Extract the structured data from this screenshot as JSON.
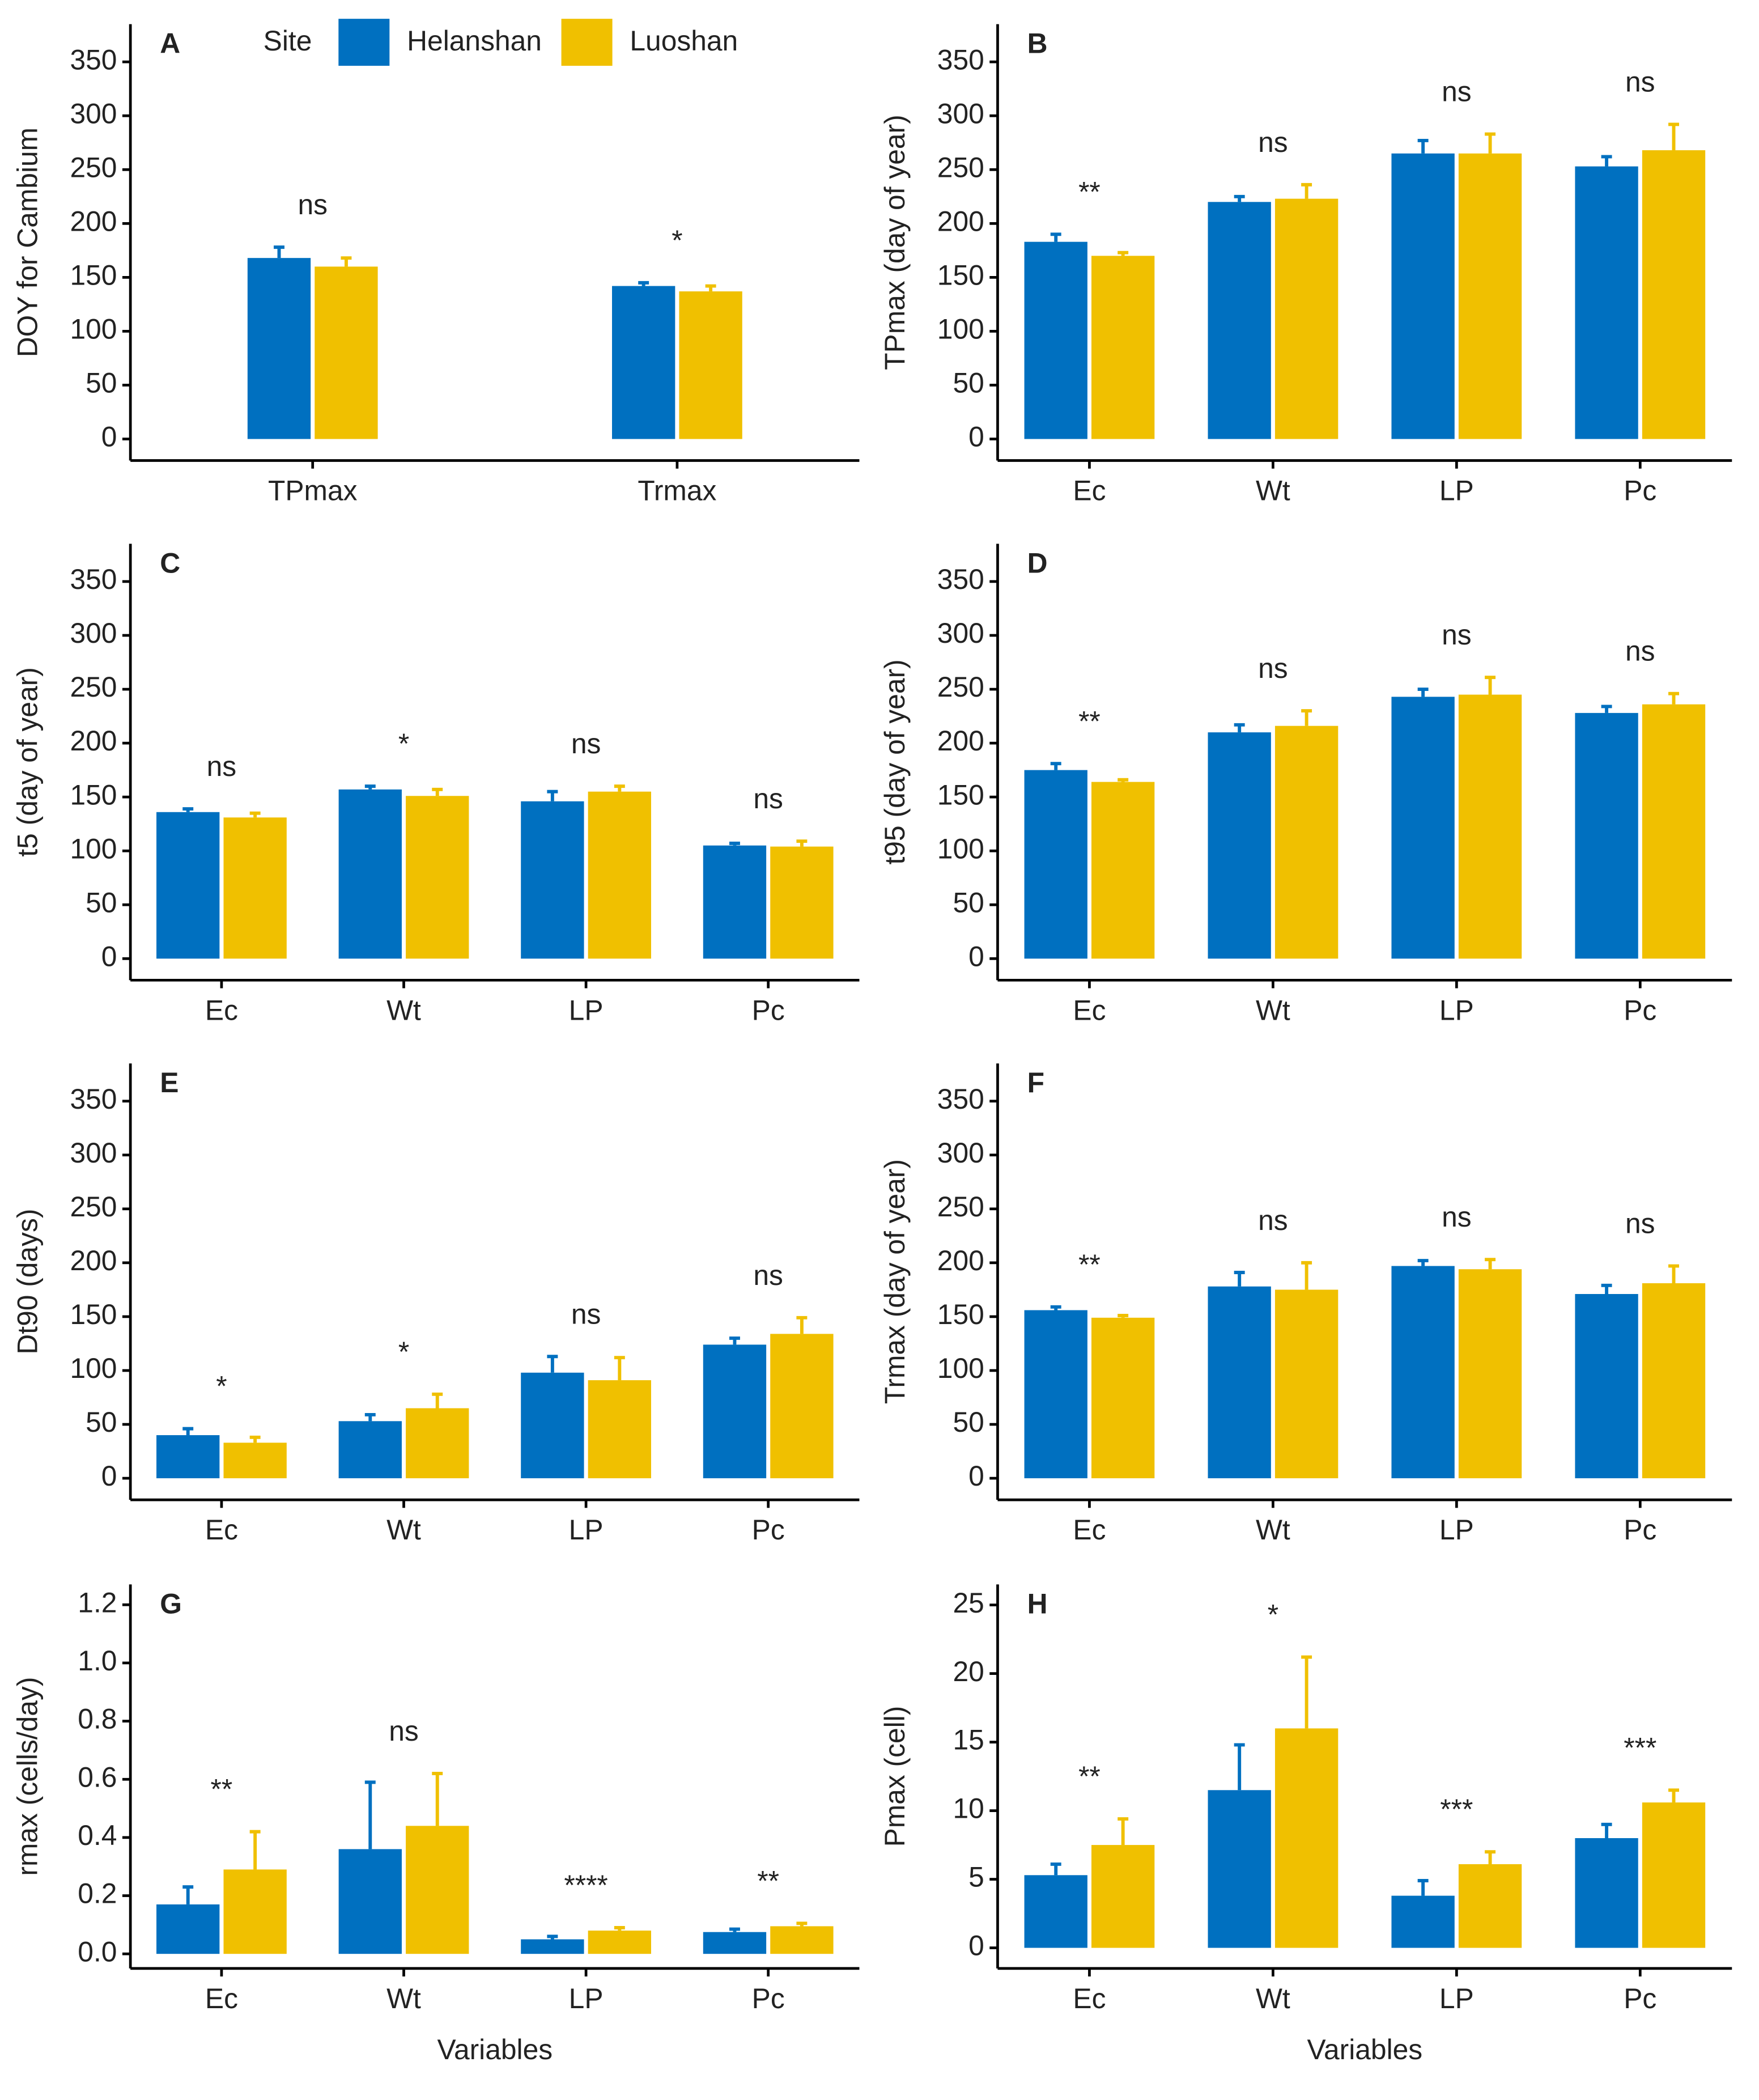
{
  "legend": {
    "title": "Site",
    "series": [
      {
        "name": "Helanshan",
        "color": "#0070c0"
      },
      {
        "name": "Luoshan",
        "color": "#f0c000"
      }
    ]
  },
  "chart_data": [
    {
      "type": "bar",
      "panel": "A",
      "ylabel": "DOY for Cambium",
      "categories": [
        "TPmax",
        "Trmax"
      ],
      "series": [
        {
          "values": [
            168,
            142
          ],
          "errors": [
            10,
            3
          ]
        },
        {
          "values": [
            160,
            137
          ],
          "errors": [
            8,
            5
          ]
        }
      ],
      "annotations": [
        "ns",
        "*"
      ],
      "ylim": [
        -20,
        385
      ],
      "yticks": [
        0,
        50,
        100,
        150,
        200,
        250,
        300,
        350
      ]
    },
    {
      "type": "bar",
      "panel": "B",
      "ylabel": "TPmax (day of year)",
      "categories": [
        "Ec",
        "Wt",
        "LP",
        "Pc"
      ],
      "series": [
        {
          "values": [
            183,
            220,
            265,
            253
          ],
          "errors": [
            7,
            5,
            12,
            9
          ]
        },
        {
          "values": [
            170,
            223,
            265,
            268
          ],
          "errors": [
            3,
            13,
            18,
            24
          ]
        }
      ],
      "annotations": [
        "**",
        "ns",
        "ns",
        "ns"
      ],
      "ylim": [
        -20,
        385
      ],
      "yticks": [
        0,
        50,
        100,
        150,
        200,
        250,
        300,
        350
      ]
    },
    {
      "type": "bar",
      "panel": "C",
      "ylabel": "t5 (day of year)",
      "categories": [
        "Ec",
        "Wt",
        "LP",
        "Pc"
      ],
      "series": [
        {
          "values": [
            136,
            157,
            146,
            105
          ],
          "errors": [
            3,
            3,
            9,
            2
          ]
        },
        {
          "values": [
            131,
            151,
            155,
            104
          ],
          "errors": [
            4,
            6,
            5,
            5
          ]
        }
      ],
      "annotations": [
        "ns",
        "*",
        "ns",
        "ns"
      ],
      "ylim": [
        -20,
        385
      ],
      "yticks": [
        0,
        50,
        100,
        150,
        200,
        250,
        300,
        350
      ]
    },
    {
      "type": "bar",
      "panel": "D",
      "ylabel": "t95 (day of year)",
      "categories": [
        "Ec",
        "Wt",
        "LP",
        "Pc"
      ],
      "series": [
        {
          "values": [
            175,
            210,
            243,
            228
          ],
          "errors": [
            6,
            7,
            7,
            6
          ]
        },
        {
          "values": [
            164,
            216,
            245,
            236
          ],
          "errors": [
            2,
            14,
            16,
            10
          ]
        }
      ],
      "annotations": [
        "**",
        "ns",
        "ns",
        "ns"
      ],
      "ylim": [
        -20,
        385
      ],
      "yticks": [
        0,
        50,
        100,
        150,
        200,
        250,
        300,
        350
      ]
    },
    {
      "type": "bar",
      "panel": "E",
      "ylabel": "Dt90 (days)",
      "categories": [
        "Ec",
        "Wt",
        "LP",
        "Pc"
      ],
      "series": [
        {
          "values": [
            40,
            53,
            98,
            124
          ],
          "errors": [
            6,
            6,
            15,
            6
          ]
        },
        {
          "values": [
            33,
            65,
            91,
            134
          ],
          "errors": [
            5,
            13,
            21,
            15
          ]
        }
      ],
      "annotations": [
        "*",
        "*",
        "ns",
        "ns"
      ],
      "ylim": [
        -20,
        385
      ],
      "yticks": [
        0,
        50,
        100,
        150,
        200,
        250,
        300,
        350
      ]
    },
    {
      "type": "bar",
      "panel": "F",
      "ylabel": "Trmax (day of year)",
      "categories": [
        "Ec",
        "Wt",
        "LP",
        "Pc"
      ],
      "series": [
        {
          "values": [
            156,
            178,
            197,
            171
          ],
          "errors": [
            3,
            13,
            5,
            8
          ]
        },
        {
          "values": [
            149,
            175,
            194,
            181
          ],
          "errors": [
            2,
            25,
            9,
            16
          ]
        }
      ],
      "annotations": [
        "**",
        "ns",
        "ns",
        "ns"
      ],
      "ylim": [
        -20,
        385
      ],
      "yticks": [
        0,
        50,
        100,
        150,
        200,
        250,
        300,
        350
      ]
    },
    {
      "type": "bar",
      "panel": "G",
      "ylabel": "rmax (cells/day)",
      "xlabel": "Variables",
      "categories": [
        "Ec",
        "Wt",
        "LP",
        "Pc"
      ],
      "series": [
        {
          "values": [
            0.17,
            0.36,
            0.05,
            0.075
          ],
          "errors": [
            0.06,
            0.23,
            0.01,
            0.01
          ]
        },
        {
          "values": [
            0.29,
            0.44,
            0.08,
            0.095
          ],
          "errors": [
            0.13,
            0.18,
            0.01,
            0.01
          ]
        }
      ],
      "annotations": [
        "**",
        "ns",
        "****",
        "**"
      ],
      "ylim": [
        -0.05,
        1.27
      ],
      "yticks": [
        {
          "value": 0,
          "label": "0.0"
        },
        0.2,
        0.4,
        0.6,
        0.8,
        {
          "value": 1,
          "label": "1.0"
        },
        1.2
      ]
    },
    {
      "type": "bar",
      "panel": "H",
      "ylabel": "Pmax (cell)",
      "xlabel": "Variables",
      "categories": [
        "Ec",
        "Wt",
        "LP",
        "Pc"
      ],
      "series": [
        {
          "values": [
            5.3,
            11.5,
            3.8,
            8
          ],
          "errors": [
            0.8,
            3.3,
            1.1,
            1
          ]
        },
        {
          "values": [
            7.5,
            16,
            6.1,
            10.6
          ],
          "errors": [
            1.9,
            5.2,
            0.9,
            0.9
          ]
        }
      ],
      "annotations": [
        "**",
        "*",
        "***",
        "***"
      ],
      "ylim": [
        -1.5,
        26.5
      ],
      "yticks": [
        0,
        5,
        10,
        15,
        20,
        25
      ]
    }
  ]
}
